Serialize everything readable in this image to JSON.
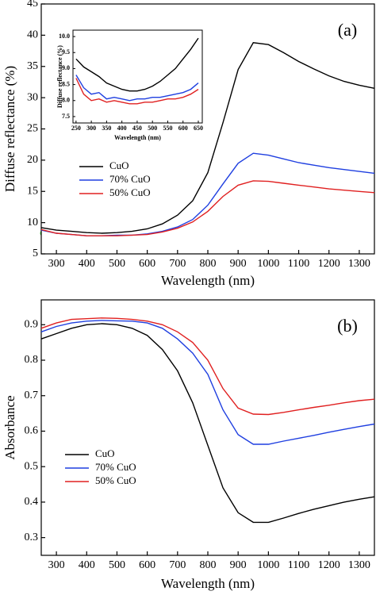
{
  "chart_data": [
    {
      "type": "line",
      "panel_label": "(a)",
      "xlabel": "Wavelength (nm)",
      "ylabel": "Diffuse reflectance (%)",
      "x": [
        250,
        300,
        350,
        400,
        450,
        500,
        550,
        600,
        650,
        700,
        750,
        800,
        850,
        900,
        950,
        1000,
        1050,
        1100,
        1150,
        1200,
        1250,
        1300,
        1350
      ],
      "xlim": [
        250,
        1350
      ],
      "ylim": [
        5,
        45
      ],
      "xticks": [
        300,
        400,
        500,
        600,
        700,
        800,
        900,
        1000,
        1100,
        1200,
        1300
      ],
      "yticks": [
        5,
        10,
        15,
        20,
        25,
        30,
        35,
        40,
        45
      ],
      "legend": "center left",
      "series": [
        {
          "name": "CuO",
          "color": "#000000",
          "values": [
            9.2,
            8.8,
            8.6,
            8.4,
            8.3,
            8.4,
            8.6,
            9.0,
            9.8,
            11.2,
            13.5,
            18,
            26,
            34.5,
            38.8,
            38.5,
            37.2,
            35.8,
            34.6,
            33.5,
            32.6,
            32,
            31.5
          ]
        },
        {
          "name": "70% CuO",
          "color": "#1f3fe0",
          "values": [
            8.8,
            8.3,
            8.1,
            7.9,
            7.9,
            8.0,
            8.0,
            8.2,
            8.6,
            9.3,
            10.5,
            12.8,
            16.2,
            19.5,
            21.1,
            20.8,
            20.2,
            19.6,
            19.2,
            18.8,
            18.5,
            18.2,
            17.9
          ]
        },
        {
          "name": "50% CuO",
          "color": "#e02020",
          "values": [
            8.9,
            8.3,
            8.1,
            7.9,
            7.9,
            7.9,
            8.0,
            8.1,
            8.5,
            9.1,
            10.1,
            11.8,
            14.2,
            16.0,
            16.7,
            16.6,
            16.3,
            16.0,
            15.7,
            15.4,
            15.2,
            15.0,
            14.8
          ]
        }
      ]
    },
    {
      "type": "line",
      "xlabel": "Wavelength (nm)",
      "ylabel": "Diffuse reflectance (%)",
      "x": [
        250,
        275,
        300,
        325,
        350,
        375,
        400,
        425,
        450,
        475,
        500,
        525,
        550,
        575,
        600,
        625,
        650
      ],
      "xlim": [
        240,
        663
      ],
      "ylim": [
        7.3,
        10.2
      ],
      "xticks": [
        250,
        300,
        350,
        400,
        450,
        500,
        550,
        600,
        650
      ],
      "yticks": [
        7.5,
        {
          "value": 8,
          "label": "8.0"
        },
        8.5,
        {
          "value": 9,
          "label": "9.0"
        },
        9.5,
        {
          "value": 10,
          "label": "10.0"
        }
      ],
      "series": [
        {
          "color": "#000000",
          "values": [
            9.3,
            9.05,
            8.9,
            8.75,
            8.55,
            8.45,
            8.35,
            8.3,
            8.3,
            8.35,
            8.45,
            8.6,
            8.8,
            9.0,
            9.3,
            9.6,
            9.95
          ]
        },
        {
          "color": "#1f3fe0",
          "values": [
            8.8,
            8.4,
            8.2,
            8.25,
            8.05,
            8.1,
            8.05,
            8.0,
            8.05,
            8.05,
            8.1,
            8.1,
            8.15,
            8.2,
            8.25,
            8.35,
            8.55
          ]
        },
        {
          "color": "#e02020",
          "values": [
            8.7,
            8.2,
            8.0,
            8.05,
            7.95,
            8.0,
            7.95,
            7.9,
            7.9,
            7.95,
            7.95,
            8.0,
            8.05,
            8.05,
            8.1,
            8.2,
            8.35
          ]
        }
      ]
    },
    {
      "type": "line",
      "panel_label": "(b)",
      "xlabel": "Wavelength (nm)",
      "ylabel": "Absorbance",
      "x": [
        250,
        300,
        350,
        400,
        450,
        500,
        550,
        600,
        650,
        700,
        750,
        800,
        850,
        900,
        950,
        1000,
        1050,
        1100,
        1150,
        1200,
        1250,
        1300,
        1350
      ],
      "xlim": [
        250,
        1350
      ],
      "ylim": [
        0.25,
        0.97
      ],
      "xticks": [
        300,
        400,
        500,
        600,
        700,
        800,
        900,
        1000,
        1100,
        1200,
        1300
      ],
      "yticks": [
        0.3,
        0.4,
        0.5,
        0.6,
        0.7,
        0.8,
        0.9
      ],
      "legend": "lower left",
      "series": [
        {
          "name": "CuO",
          "color": "#000000",
          "values": [
            0.86,
            0.875,
            0.89,
            0.9,
            0.903,
            0.9,
            0.89,
            0.87,
            0.83,
            0.77,
            0.68,
            0.56,
            0.44,
            0.37,
            0.343,
            0.343,
            0.355,
            0.368,
            0.38,
            0.39,
            0.4,
            0.408,
            0.415
          ]
        },
        {
          "name": "70% CuO",
          "color": "#1f3fe0",
          "values": [
            0.88,
            0.895,
            0.905,
            0.91,
            0.912,
            0.911,
            0.91,
            0.905,
            0.89,
            0.86,
            0.82,
            0.76,
            0.66,
            0.59,
            0.563,
            0.563,
            0.572,
            0.58,
            0.588,
            0.597,
            0.605,
            0.613,
            0.62
          ]
        },
        {
          "name": "50% CuO",
          "color": "#e02020",
          "values": [
            0.89,
            0.905,
            0.915,
            0.917,
            0.919,
            0.918,
            0.915,
            0.91,
            0.9,
            0.88,
            0.85,
            0.8,
            0.72,
            0.665,
            0.648,
            0.647,
            0.653,
            0.66,
            0.667,
            0.673,
            0.68,
            0.686,
            0.69
          ]
        }
      ]
    }
  ]
}
